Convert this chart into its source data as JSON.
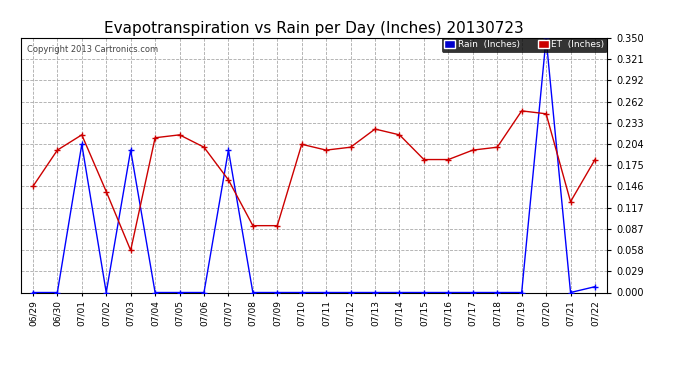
{
  "title": "Evapotranspiration vs Rain per Day (Inches) 20130723",
  "copyright": "Copyright 2013 Cartronics.com",
  "x_labels": [
    "06/29",
    "06/30",
    "07/01",
    "07/02",
    "07/03",
    "07/04",
    "07/05",
    "07/06",
    "07/07",
    "07/08",
    "07/09",
    "07/10",
    "07/11",
    "07/12",
    "07/13",
    "07/14",
    "07/15",
    "07/16",
    "07/17",
    "07/18",
    "07/19",
    "07/20",
    "07/21",
    "07/22"
  ],
  "rain_values": [
    0.0,
    0.0,
    0.204,
    0.0,
    0.196,
    0.0,
    0.0,
    0.0,
    0.196,
    0.0,
    0.0,
    0.0,
    0.0,
    0.0,
    0.0,
    0.0,
    0.0,
    0.0,
    0.0,
    0.0,
    0.0,
    0.35,
    0.0,
    0.008
  ],
  "et_values": [
    0.146,
    0.196,
    0.217,
    0.139,
    0.058,
    0.213,
    0.217,
    0.2,
    0.155,
    0.092,
    0.092,
    0.204,
    0.196,
    0.2,
    0.225,
    0.217,
    0.183,
    0.183,
    0.196,
    0.2,
    0.25,
    0.246,
    0.125,
    0.183
  ],
  "ylim": [
    0.0,
    0.35
  ],
  "yticks": [
    0.0,
    0.029,
    0.058,
    0.087,
    0.117,
    0.146,
    0.175,
    0.204,
    0.233,
    0.262,
    0.292,
    0.321,
    0.35
  ],
  "rain_color": "#0000ff",
  "et_color": "#cc0000",
  "background_color": "#ffffff",
  "grid_color": "#aaaaaa",
  "title_fontsize": 11,
  "legend_rain_bg": "#0000cc",
  "legend_et_bg": "#cc0000",
  "fig_width": 6.9,
  "fig_height": 3.75,
  "dpi": 100
}
